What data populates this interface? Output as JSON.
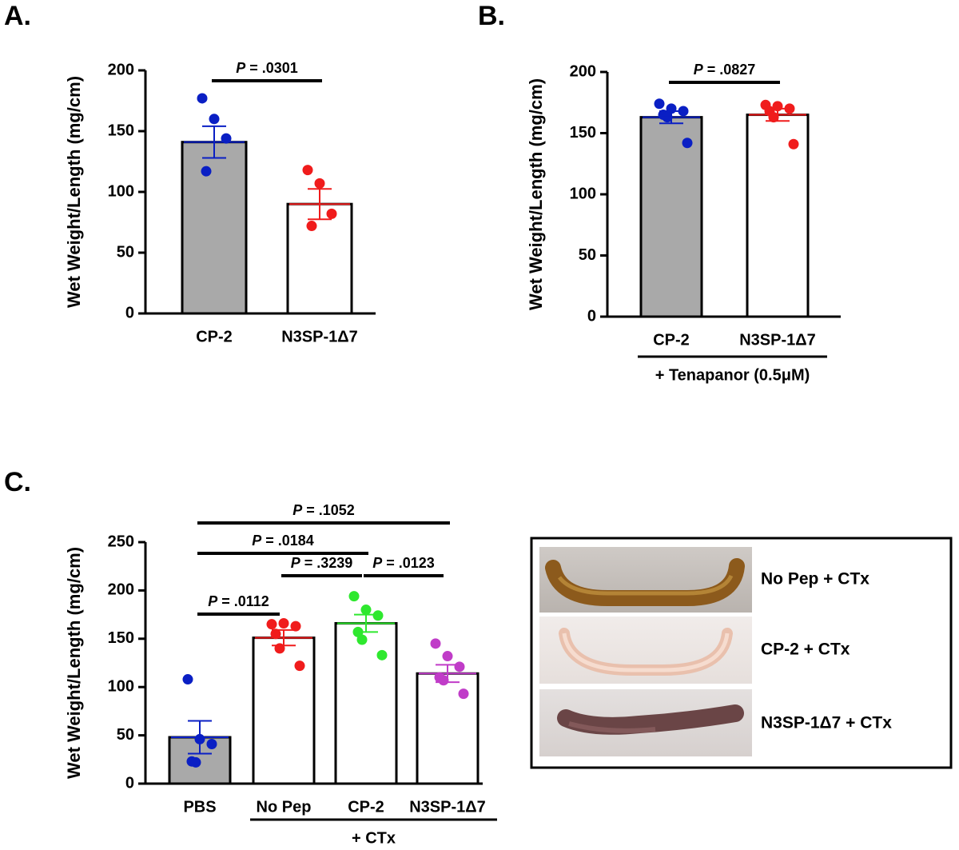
{
  "chart_data": [
    {
      "type": "bar",
      "panel_label": "A.",
      "ylabel": "Wet Weight/Length (mg/cm)",
      "categories": [
        "CP-2",
        "N3SP-1Δ7"
      ],
      "values": [
        141,
        90
      ],
      "errors": [
        13,
        12.5
      ],
      "points": [
        [
          177,
          160,
          144,
          117
        ],
        [
          118,
          107,
          82,
          72
        ]
      ],
      "point_colors": [
        "#0a1fc4",
        "#f01c1c"
      ],
      "bar_colors": [
        "#a9a9a9",
        "#ffffff"
      ],
      "ylim": [
        0,
        200
      ],
      "yticks": [
        0,
        50,
        100,
        150,
        200
      ],
      "annotations": [
        {
          "text": "P = .0301",
          "between": [
            "CP-2",
            "N3SP-1Δ7"
          ]
        }
      ]
    },
    {
      "type": "bar",
      "panel_label": "B.",
      "ylabel": "Wet Weight/Length (mg/cm)",
      "categories": [
        "CP-2",
        "N3SP-1Δ7"
      ],
      "values": [
        163,
        165
      ],
      "errors": [
        5,
        5
      ],
      "points": [
        [
          174,
          170,
          168,
          165,
          163,
          142
        ],
        [
          173,
          172,
          170,
          168,
          163,
          141
        ]
      ],
      "point_colors": [
        "#0a1fc4",
        "#f01c1c"
      ],
      "bar_colors": [
        "#a9a9a9",
        "#ffffff"
      ],
      "ylim": [
        0,
        200
      ],
      "yticks": [
        0,
        50,
        100,
        150,
        200
      ],
      "annotations": [
        {
          "text": "P = .0827",
          "between": [
            "CP-2",
            "N3SP-1Δ7"
          ]
        }
      ],
      "group_label": {
        "text": "+ Tenapanor (0.5μM)",
        "between": [
          "CP-2",
          "N3SP-1Δ7"
        ]
      }
    },
    {
      "type": "bar",
      "panel_label": "C.",
      "ylabel": "Wet Weight/Length (mg/cm)",
      "categories": [
        "PBS",
        "No Pep",
        "CP-2",
        "N3SP-1Δ7"
      ],
      "values": [
        48,
        151,
        166,
        114
      ],
      "errors": [
        17,
        8,
        9,
        9
      ],
      "points": [
        [
          108,
          46,
          41,
          23,
          22
        ],
        [
          165,
          166,
          163,
          155,
          140,
          122
        ],
        [
          194,
          180,
          174,
          157,
          149,
          133
        ],
        [
          145,
          132,
          121,
          110,
          107,
          93
        ]
      ],
      "point_colors": [
        "#0a1fc4",
        "#f01c1c",
        "#2ee82e",
        "#c03cc8"
      ],
      "bar_colors": [
        "#a9a9a9",
        "#ffffff",
        "#ffffff",
        "#ffffff"
      ],
      "ylim": [
        0,
        250
      ],
      "yticks": [
        0,
        50,
        100,
        150,
        200,
        250
      ],
      "annotations": [
        {
          "text": "P = .0112",
          "between": [
            "PBS",
            "No Pep"
          ]
        },
        {
          "text": "P = .3239",
          "between": [
            "No Pep",
            "CP-2"
          ]
        },
        {
          "text": "P = .0123",
          "between": [
            "CP-2",
            "N3SP-1Δ7"
          ]
        },
        {
          "text": "P = .0184",
          "between": [
            "PBS",
            "CP-2"
          ]
        },
        {
          "text": "P = .1052",
          "between": [
            "PBS",
            "N3SP-1Δ7"
          ]
        }
      ],
      "group_label": {
        "text": "+ CTx",
        "between": [
          "No Pep",
          "N3SP-1Δ7"
        ]
      }
    }
  ],
  "photo_panel": {
    "labels": [
      "No Pep + CTx",
      "CP-2 + CTx",
      "N3SP-1Δ7 + CTx"
    ]
  }
}
